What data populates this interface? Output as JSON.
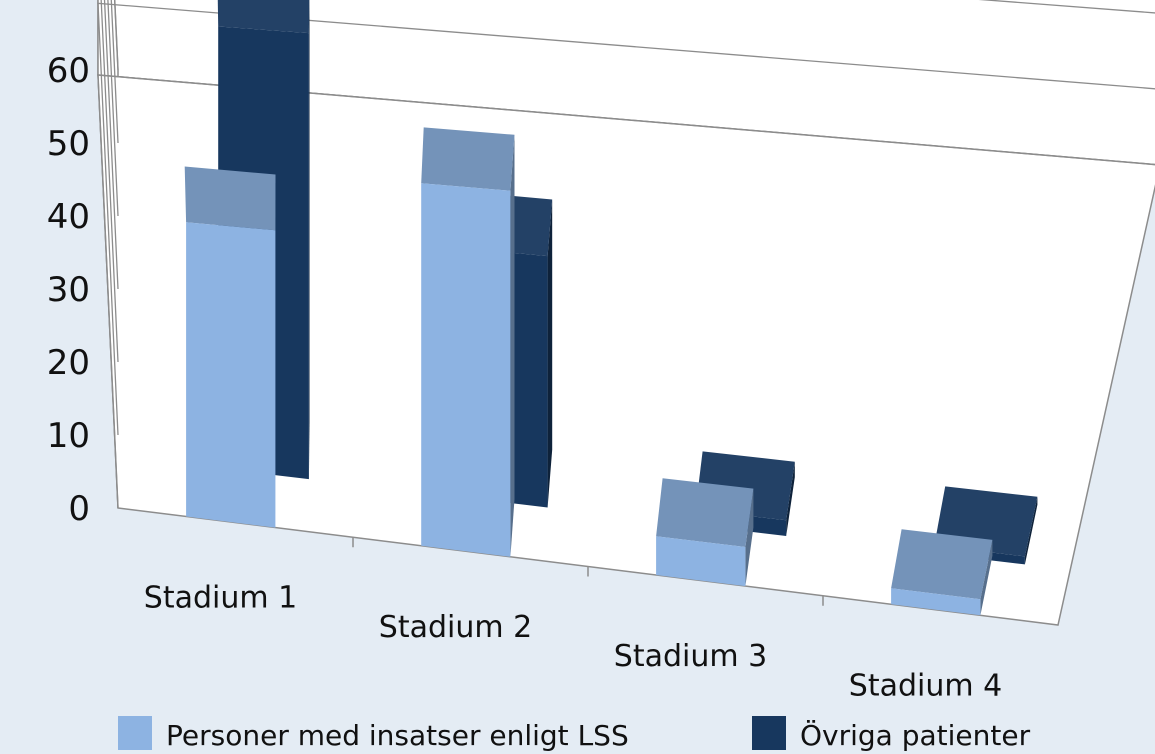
{
  "chart_data": {
    "type": "bar",
    "categories": [
      "Stadium 1",
      "Stadium 2",
      "Stadium 3",
      "Stadium 4"
    ],
    "series": [
      {
        "name": "Personer med insatser enligt LSS",
        "values": [
          40,
          48,
          5,
          2
        ],
        "color": "#8db3e2"
      },
      {
        "name": "Övriga patienter",
        "values": [
          60,
          33,
          2,
          1
        ],
        "color": "#17375e"
      }
    ],
    "yticks": [
      "0",
      "10",
      "20",
      "30",
      "40",
      "50",
      "60"
    ],
    "ylim": [
      0,
      60
    ],
    "grid": true,
    "legend": "bottom",
    "view": "3d-perspective"
  }
}
